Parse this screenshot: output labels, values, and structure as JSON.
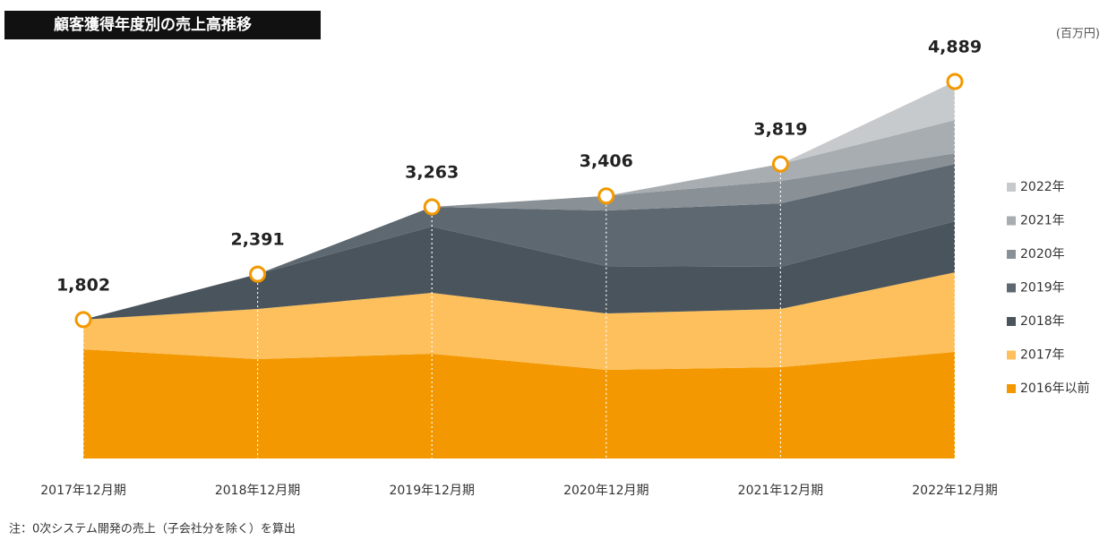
{
  "chart_data": {
    "type": "stacked-area",
    "title": "顧客獲得年度別の売上高推移",
    "unit_label": "(百万円)",
    "note": "注：0次システム開発の売上（子会社分を除く）を算出",
    "categories": [
      "2017年12月期",
      "2018年12月期",
      "2019年12月期",
      "2020年12月期",
      "2021年12月期",
      "2022年12月期"
    ],
    "series": [
      {
        "name": "2016年以前",
        "color": "#f39800",
        "values": [
          1416,
          1289,
          1359,
          1150,
          1184,
          1382
        ]
      },
      {
        "name": "2017年",
        "color": "#fdc05c",
        "values": [
          386,
          650,
          789,
          731,
          755,
          1033
        ]
      },
      {
        "name": "2018年",
        "color": "#4a545c",
        "values": [
          0,
          452,
          859,
          615,
          546,
          662
        ]
      },
      {
        "name": "2019年",
        "color": "#5d6870",
        "values": [
          0,
          0,
          256,
          720,
          824,
          743
        ]
      },
      {
        "name": "2020年",
        "color": "#8a9196",
        "values": [
          0,
          0,
          0,
          190,
          290,
          139
        ]
      },
      {
        "name": "2021年",
        "color": "#a8adb1",
        "values": [
          0,
          0,
          0,
          0,
          220,
          430
        ]
      },
      {
        "name": "2022年",
        "color": "#c7cacc",
        "values": [
          0,
          0,
          0,
          0,
          0,
          500
        ]
      }
    ],
    "totals": {
      "values": [
        1802,
        2391,
        3263,
        3406,
        3819,
        4889
      ],
      "value_labels": [
        "1,802",
        "2,391",
        "3,263",
        "3,406",
        "3,819",
        "4,889"
      ],
      "color": "#f39800"
    },
    "ylim": [
      0,
      5000
    ],
    "legend": "right"
  }
}
